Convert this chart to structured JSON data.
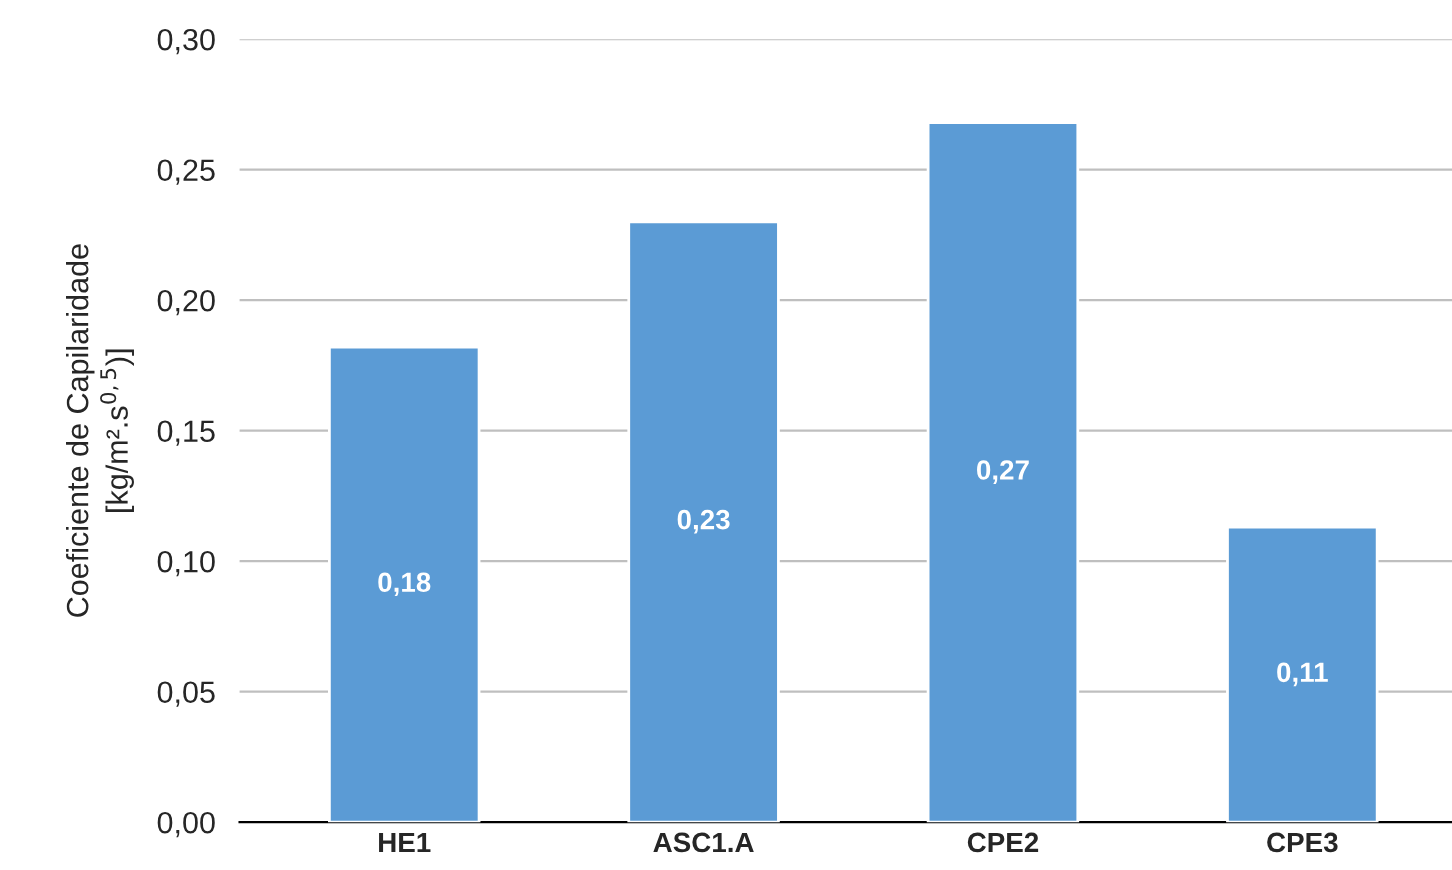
{
  "chart_data": {
    "type": "bar",
    "ylabel": "Coeficiente de Capilaridade\n[kg/m².s$^{0,5}$)]",
    "categories": [
      "HE1",
      "ASC1.A",
      "CPE2",
      "CPE3"
    ],
    "values": [
      0.182,
      0.23,
      0.268,
      0.113
    ],
    "value_labels": [
      "0,18",
      "0,23",
      "0,27",
      "0,11"
    ],
    "color": "#5b9bd5",
    "ylim": [
      0,
      0.3
    ],
    "yticks": [
      {
        "value": 0,
        "label": "0,00"
      },
      {
        "value": 0.05,
        "label": "0,05"
      },
      {
        "value": 0.1,
        "label": "0,10"
      },
      {
        "value": 0.15,
        "label": "0,15"
      },
      {
        "value": 0.2,
        "label": "0,20"
      },
      {
        "value": 0.25,
        "label": "0,25"
      },
      {
        "value": 0.3,
        "label": "0,30"
      }
    ],
    "grid": "y",
    "legend": false
  }
}
